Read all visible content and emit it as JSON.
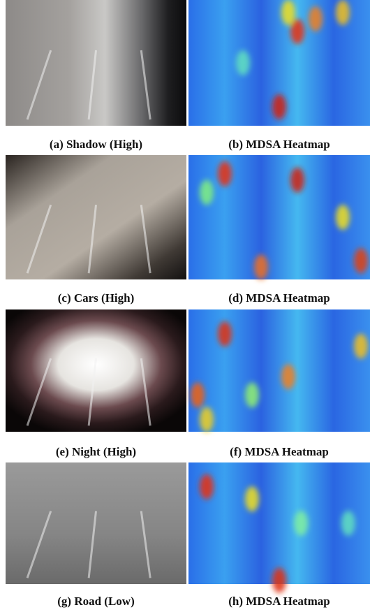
{
  "figure": {
    "panels": [
      {
        "caption": "(a) Shadow (High)"
      },
      {
        "caption": "(b) MDSA Heatmap"
      },
      {
        "caption": "(c) Cars (High)"
      },
      {
        "caption": "(d) MDSA Heatmap"
      },
      {
        "caption": "(e) Night (High)"
      },
      {
        "caption": "(f) MDSA Heatmap"
      },
      {
        "caption": "(g) Road (Low)"
      },
      {
        "caption": "(h) MDSA Heatmap"
      }
    ]
  }
}
